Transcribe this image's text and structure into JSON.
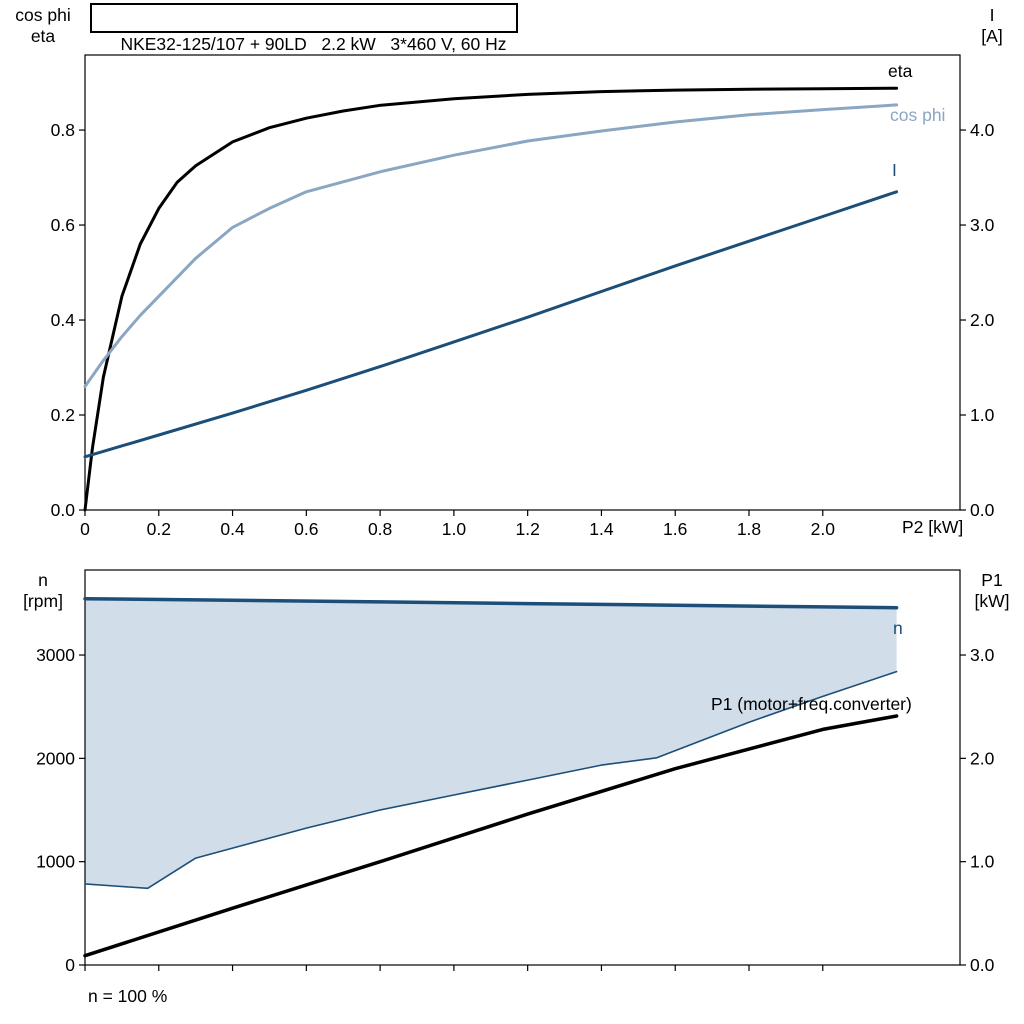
{
  "chart_data": [
    {
      "type": "line",
      "title": "NKE32-125/107 + 90LD   2.2 kW   3*460 V, 60 Hz",
      "grid": false,
      "legend_position": "inline-curve-labels",
      "x_axis": {
        "label": "P2 [kW]",
        "range": [
          0,
          2.372
        ],
        "ticks": [
          0,
          0.2,
          0.4,
          0.6,
          0.8,
          1.0,
          1.2,
          1.4,
          1.6,
          1.8,
          2.0
        ],
        "tick_labels": [
          "0",
          "0.2",
          "0.4",
          "0.6",
          "0.8",
          "1.0",
          "1.2",
          "1.4",
          "1.6",
          "1.8",
          "2.0"
        ],
        "show_tick_labels": true
      },
      "left_axis": {
        "label_lines": [
          "cos phi",
          "eta"
        ],
        "range": [
          0,
          0.958
        ],
        "ticks": [
          0,
          0.2,
          0.4,
          0.6,
          0.8
        ],
        "tick_labels": [
          "0.0",
          "0.2",
          "0.4",
          "0.6",
          "0.8"
        ]
      },
      "right_axis": {
        "label_lines": [
          "I",
          "[A]"
        ],
        "range": [
          0,
          4.79
        ],
        "ticks": [
          0,
          1,
          2,
          3,
          4
        ],
        "tick_labels": [
          "0.0",
          "1.0",
          "2.0",
          "3.0",
          "4.0"
        ]
      },
      "series": [
        {
          "name": "eta",
          "label": "eta",
          "axis": "left",
          "color": "#000000",
          "width": 3,
          "x": [
            0,
            0.02,
            0.05,
            0.1,
            0.15,
            0.2,
            0.25,
            0.3,
            0.4,
            0.5,
            0.6,
            0.7,
            0.8,
            1.0,
            1.2,
            1.4,
            1.6,
            1.8,
            2.0,
            2.2
          ],
          "y": [
            0,
            0.13,
            0.28,
            0.45,
            0.56,
            0.635,
            0.69,
            0.725,
            0.775,
            0.805,
            0.825,
            0.84,
            0.852,
            0.866,
            0.875,
            0.881,
            0.884,
            0.886,
            0.887,
            0.888
          ]
        },
        {
          "name": "cos-phi",
          "label": "cos phi",
          "axis": "left",
          "color": "#8ba6c3",
          "width": 3,
          "x": [
            0,
            0.05,
            0.1,
            0.15,
            0.2,
            0.3,
            0.4,
            0.5,
            0.6,
            0.8,
            1.0,
            1.2,
            1.4,
            1.6,
            1.8,
            2.0,
            2.2
          ],
          "y": [
            0.26,
            0.315,
            0.365,
            0.41,
            0.45,
            0.53,
            0.595,
            0.635,
            0.67,
            0.712,
            0.747,
            0.777,
            0.798,
            0.817,
            0.832,
            0.843,
            0.853
          ]
        },
        {
          "name": "current",
          "label": "I",
          "axis": "right",
          "color": "#1b4e79",
          "width": 3,
          "x": [
            0,
            0.2,
            0.4,
            0.6,
            0.8,
            1.0,
            1.2,
            1.4,
            1.6,
            1.8,
            2.0,
            2.2
          ],
          "y": [
            0.56,
            0.79,
            1.02,
            1.26,
            1.51,
            1.77,
            2.03,
            2.3,
            2.57,
            2.83,
            3.09,
            3.35
          ]
        }
      ]
    },
    {
      "type": "line",
      "title": "",
      "grid": false,
      "legend_position": "inline-curve-labels",
      "footnote": "n = 100 %",
      "x_axis": {
        "label": "",
        "range": [
          0,
          2.372
        ],
        "ticks": [
          0,
          0.2,
          0.4,
          0.6,
          0.8,
          1.0,
          1.2,
          1.4,
          1.6,
          1.8,
          2.0
        ],
        "tick_labels": [],
        "show_tick_labels": false
      },
      "left_axis": {
        "label_lines": [
          "n",
          "[rpm]"
        ],
        "range": [
          0,
          3823
        ],
        "ticks": [
          0,
          1000,
          2000,
          3000
        ],
        "tick_labels": [
          "0",
          "1000",
          "2000",
          "3000"
        ]
      },
      "right_axis": {
        "label_lines": [
          "P1",
          "[kW]"
        ],
        "range": [
          0,
          3.823
        ],
        "ticks": [
          0,
          1,
          2,
          3
        ],
        "tick_labels": [
          "0.0",
          "1.0",
          "2.0",
          "3.0"
        ]
      },
      "fill_between": {
        "upper": "n",
        "lower": "n-min",
        "color": "#ccd9e6",
        "opacity": 0.9
      },
      "series": [
        {
          "name": "n",
          "label": "n",
          "axis": "left",
          "color": "#1b4e79",
          "width": 3.5,
          "x": [
            0,
            0.4,
            0.8,
            1.2,
            1.6,
            2.0,
            2.2
          ],
          "y": [
            3545,
            3530,
            3514,
            3498,
            3482,
            3466,
            3458
          ]
        },
        {
          "name": "n-min",
          "label": "",
          "axis": "left",
          "color": "#1b4e79",
          "width": 1.6,
          "x": [
            0,
            0.08,
            0.17,
            0.3,
            0.45,
            0.6,
            0.8,
            1.0,
            1.2,
            1.4,
            1.55,
            1.8,
            2.0,
            2.2
          ],
          "y": [
            785,
            765,
            742,
            1035,
            1180,
            1325,
            1500,
            1645,
            1790,
            1935,
            2005,
            2350,
            2600,
            2840
          ]
        },
        {
          "name": "p1",
          "label": "P1 (motor+freq.converter)",
          "axis": "right",
          "color": "#000000",
          "width": 3.5,
          "x": [
            0,
            0.4,
            0.8,
            1.2,
            1.6,
            2.0,
            2.2
          ],
          "y": [
            0.09,
            0.55,
            1.0,
            1.46,
            1.9,
            2.28,
            2.41
          ]
        }
      ]
    }
  ]
}
